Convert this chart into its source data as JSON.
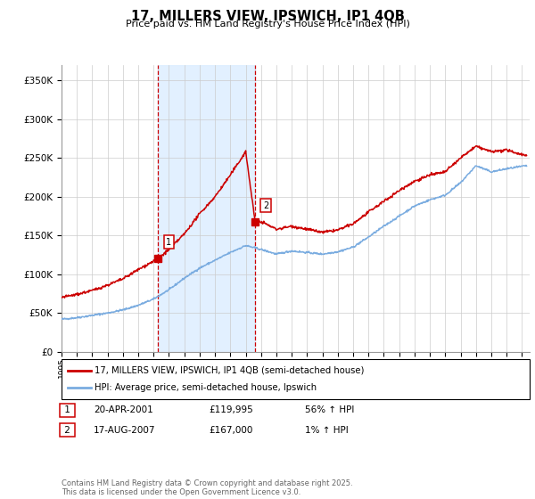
{
  "title": "17, MILLERS VIEW, IPSWICH, IP1 4QB",
  "subtitle": "Price paid vs. HM Land Registry's House Price Index (HPI)",
  "background_color": "#ffffff",
  "plot_bg_color": "#ffffff",
  "grid_color": "#cccccc",
  "ylabel_ticks": [
    "£0",
    "£50K",
    "£100K",
    "£150K",
    "£200K",
    "£250K",
    "£300K",
    "£350K"
  ],
  "ytick_values": [
    0,
    50000,
    100000,
    150000,
    200000,
    250000,
    300000,
    350000
  ],
  "ylim": [
    0,
    370000
  ],
  "xlim_start": 1995.0,
  "xlim_end": 2025.5,
  "sale1_x": 2001.3,
  "sale1_y": 119995,
  "sale2_x": 2007.62,
  "sale2_y": 167000,
  "sale1_label": "1",
  "sale2_label": "2",
  "legend_line1": "17, MILLERS VIEW, IPSWICH, IP1 4QB (semi-detached house)",
  "legend_line2": "HPI: Average price, semi-detached house, Ipswich",
  "footer": "Contains HM Land Registry data © Crown copyright and database right 2025.\nThis data is licensed under the Open Government Licence v3.0.",
  "line_color_red": "#cc0000",
  "line_color_blue": "#7aace0",
  "shade_color": "#ddeeff",
  "xticks": [
    1995,
    1996,
    1997,
    1998,
    1999,
    2000,
    2001,
    2002,
    2003,
    2004,
    2005,
    2006,
    2007,
    2008,
    2009,
    2010,
    2011,
    2012,
    2013,
    2014,
    2015,
    2016,
    2017,
    2018,
    2019,
    2020,
    2021,
    2022,
    2023,
    2024,
    2025
  ]
}
